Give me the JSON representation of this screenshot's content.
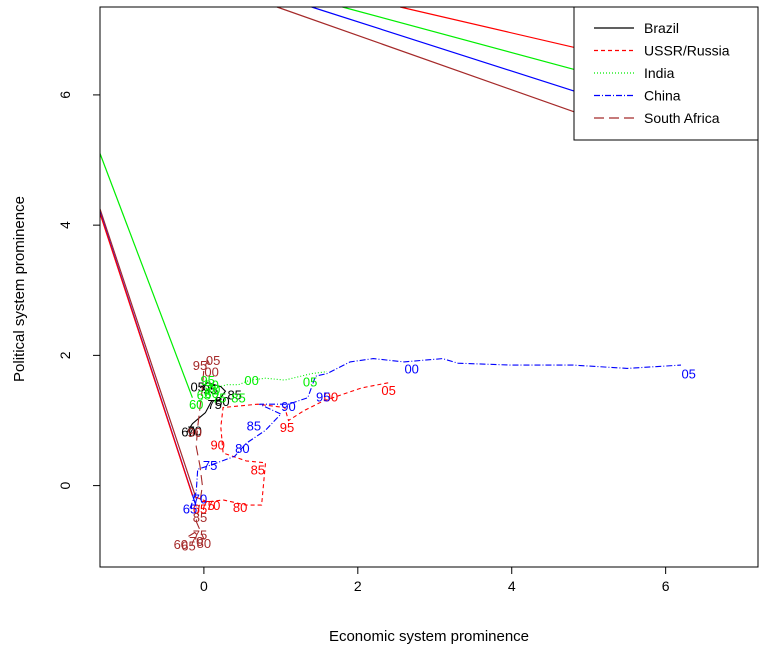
{
  "chart_data": {
    "type": "line",
    "title": "",
    "xlabel": "Economic system prominence",
    "ylabel": "Political system prominence",
    "xlim": [
      -1.35,
      7.2
    ],
    "ylim": [
      -1.25,
      7.35
    ],
    "xticks": [
      0,
      2,
      4,
      6
    ],
    "yticks": [
      0,
      2,
      4,
      6
    ],
    "grid": false,
    "legend_position": "top-right",
    "series": [
      {
        "name": "Brazil",
        "color": "#000000",
        "dash": "solid",
        "points": [
          [
            -0.22,
            0.82
          ],
          [
            -0.15,
            0.95
          ],
          [
            -0.05,
            1.05
          ],
          [
            0.02,
            1.12
          ],
          [
            0.1,
            1.3
          ],
          [
            0.2,
            1.32
          ],
          [
            0.28,
            1.45
          ],
          [
            0.22,
            1.52
          ],
          [
            0.05,
            1.58
          ],
          [
            -0.05,
            1.5
          ]
        ],
        "labels": [
          {
            "text": "60",
            "x": -0.2,
            "y": 0.83
          },
          {
            "text": "70",
            "x": -0.12,
            "y": 0.85
          },
          {
            "text": "75",
            "x": 0.14,
            "y": 1.25
          },
          {
            "text": "80",
            "x": 0.24,
            "y": 1.3
          },
          {
            "text": "85",
            "x": 0.4,
            "y": 1.4
          },
          {
            "text": "95",
            "x": 0.08,
            "y": 1.48
          },
          {
            "text": "05",
            "x": -0.08,
            "y": 1.52
          }
        ]
      },
      {
        "name": "USSR/Russia",
        "color": "#ff0000",
        "dash": "4,3",
        "points": [
          [
            -0.1,
            -0.18
          ],
          [
            0.05,
            -0.25
          ],
          [
            0.25,
            -0.22
          ],
          [
            0.55,
            -0.3
          ],
          [
            0.75,
            -0.3
          ],
          [
            0.8,
            0.35
          ],
          [
            0.55,
            0.38
          ],
          [
            0.25,
            0.5
          ],
          [
            0.22,
            0.9
          ],
          [
            0.25,
            1.2
          ],
          [
            0.7,
            1.25
          ],
          [
            1.05,
            1.2
          ],
          [
            1.1,
            1.0
          ],
          [
            1.3,
            1.15
          ],
          [
            1.55,
            1.3
          ],
          [
            2.05,
            1.5
          ],
          [
            2.4,
            1.58
          ]
        ],
        "labels": [
          {
            "text": "65",
            "x": -0.05,
            "y": -0.35
          },
          {
            "text": "70",
            "x": 0.12,
            "y": -0.3
          },
          {
            "text": "75",
            "x": 0.05,
            "y": -0.3
          },
          {
            "text": "80",
            "x": 0.47,
            "y": -0.33
          },
          {
            "text": "85",
            "x": 0.7,
            "y": 0.25
          },
          {
            "text": "90",
            "x": 0.18,
            "y": 0.63
          },
          {
            "text": "95",
            "x": 1.08,
            "y": 0.9
          },
          {
            "text": "00",
            "x": 1.65,
            "y": 1.37
          },
          {
            "text": "05",
            "x": 2.4,
            "y": 1.47
          }
        ]
      },
      {
        "name": "India",
        "color": "#00ee00",
        "dash": "1,2",
        "points": [
          [
            -0.15,
            1.2
          ],
          [
            -0.05,
            1.3
          ],
          [
            0.05,
            1.4
          ],
          [
            0.15,
            1.5
          ],
          [
            0.3,
            1.55
          ],
          [
            0.45,
            1.55
          ],
          [
            0.6,
            1.62
          ],
          [
            0.8,
            1.65
          ],
          [
            1.05,
            1.62
          ],
          [
            1.4,
            1.72
          ],
          [
            1.6,
            1.75
          ]
        ],
        "labels": [
          {
            "text": "60",
            "x": -0.1,
            "y": 1.25
          },
          {
            "text": "65",
            "x": 0.0,
            "y": 1.4
          },
          {
            "text": "70",
            "x": 0.12,
            "y": 1.48
          },
          {
            "text": "75",
            "x": 0.2,
            "y": 1.35
          },
          {
            "text": "80",
            "x": 0.1,
            "y": 1.42
          },
          {
            "text": "85",
            "x": 0.45,
            "y": 1.35
          },
          {
            "text": "90",
            "x": 0.1,
            "y": 1.55
          },
          {
            "text": "95",
            "x": 0.05,
            "y": 1.62
          },
          {
            "text": "00",
            "x": 0.62,
            "y": 1.62
          },
          {
            "text": "05",
            "x": 1.38,
            "y": 1.6
          }
        ]
      },
      {
        "name": "China",
        "color": "#0000ff",
        "dash": "6,2,1,2",
        "points": [
          [
            -0.18,
            -0.35
          ],
          [
            -0.1,
            -0.1
          ],
          [
            -0.08,
            0.25
          ],
          [
            0.1,
            0.32
          ],
          [
            0.4,
            0.45
          ],
          [
            0.55,
            0.65
          ],
          [
            0.8,
            0.85
          ],
          [
            1.0,
            1.1
          ],
          [
            0.72,
            1.25
          ],
          [
            1.1,
            1.25
          ],
          [
            1.35,
            1.35
          ],
          [
            1.45,
            1.68
          ],
          [
            1.6,
            1.72
          ],
          [
            1.9,
            1.9
          ],
          [
            2.2,
            1.95
          ],
          [
            2.6,
            1.9
          ],
          [
            3.1,
            1.95
          ],
          [
            3.3,
            1.88
          ],
          [
            4.0,
            1.85
          ],
          [
            4.8,
            1.85
          ],
          [
            5.5,
            1.8
          ],
          [
            6.2,
            1.85
          ]
        ],
        "labels": [
          {
            "text": "65",
            "x": -0.18,
            "y": -0.35
          },
          {
            "text": "70",
            "x": -0.05,
            "y": -0.2
          },
          {
            "text": "75",
            "x": 0.08,
            "y": 0.32
          },
          {
            "text": "80",
            "x": 0.5,
            "y": 0.58
          },
          {
            "text": "85",
            "x": 0.65,
            "y": 0.92
          },
          {
            "text": "90",
            "x": 1.1,
            "y": 1.22
          },
          {
            "text": "95",
            "x": 1.55,
            "y": 1.37
          },
          {
            "text": "00",
            "x": 2.7,
            "y": 1.8
          },
          {
            "text": "05",
            "x": 6.3,
            "y": 1.72
          }
        ]
      },
      {
        "name": "South Africa",
        "color": "#a52a2a",
        "dash": "10,5",
        "points": [
          [
            -0.2,
            -0.78
          ],
          [
            -0.12,
            -0.72
          ],
          [
            -0.05,
            -0.8
          ],
          [
            0.0,
            -0.82
          ],
          [
            -0.1,
            -0.55
          ],
          [
            -0.05,
            -0.25
          ],
          [
            -0.02,
            0.0
          ],
          [
            -0.05,
            0.3
          ],
          [
            -0.1,
            0.6
          ],
          [
            -0.08,
            0.9
          ],
          [
            -0.05,
            1.2
          ],
          [
            -0.02,
            1.5
          ],
          [
            0.0,
            1.8
          ],
          [
            0.05,
            1.92
          ],
          [
            0.1,
            1.8
          ]
        ],
        "labels": [
          {
            "text": "60",
            "x": -0.3,
            "y": -0.9
          },
          {
            "text": "65",
            "x": -0.2,
            "y": -0.92
          },
          {
            "text": "70",
            "x": -0.1,
            "y": -0.85
          },
          {
            "text": "75",
            "x": -0.05,
            "y": -0.75
          },
          {
            "text": "80",
            "x": 0.0,
            "y": -0.88
          },
          {
            "text": "85",
            "x": -0.05,
            "y": -0.48
          },
          {
            "text": "90",
            "x": -0.12,
            "y": 0.82
          },
          {
            "text": "95",
            "x": -0.05,
            "y": 1.85
          },
          {
            "text": "00",
            "x": 0.1,
            "y": 1.75
          },
          {
            "text": "05",
            "x": 0.12,
            "y": 1.93
          }
        ]
      }
    ],
    "legend_diagonals": [
      {
        "color": "#a52a2a",
        "points": [
          [
            -1.35,
            4.25
          ],
          [
            -0.1,
            -0.2
          ]
        ]
      },
      {
        "color": "#0000ff",
        "points": [
          [
            -1.35,
            4.2
          ],
          [
            -0.1,
            -0.32
          ]
        ]
      },
      {
        "color": "#ff0000",
        "points": [
          [
            -1.35,
            4.18
          ],
          [
            -0.15,
            -0.15
          ]
        ]
      },
      {
        "color": "#00ee00",
        "points": [
          [
            -1.35,
            5.1
          ],
          [
            -0.15,
            1.35
          ]
        ]
      },
      {
        "color": "#ff0000",
        "points": [
          [
            2.55,
            7.35
          ],
          [
            5.1,
            6.65
          ]
        ]
      },
      {
        "color": "#00ee00",
        "points": [
          [
            1.8,
            7.35
          ],
          [
            5.1,
            6.3
          ]
        ]
      },
      {
        "color": "#0000ff",
        "points": [
          [
            1.4,
            7.35
          ],
          [
            5.1,
            5.95
          ]
        ]
      },
      {
        "color": "#a52a2a",
        "points": [
          [
            0.95,
            7.35
          ],
          [
            5.1,
            5.62
          ]
        ]
      }
    ]
  }
}
